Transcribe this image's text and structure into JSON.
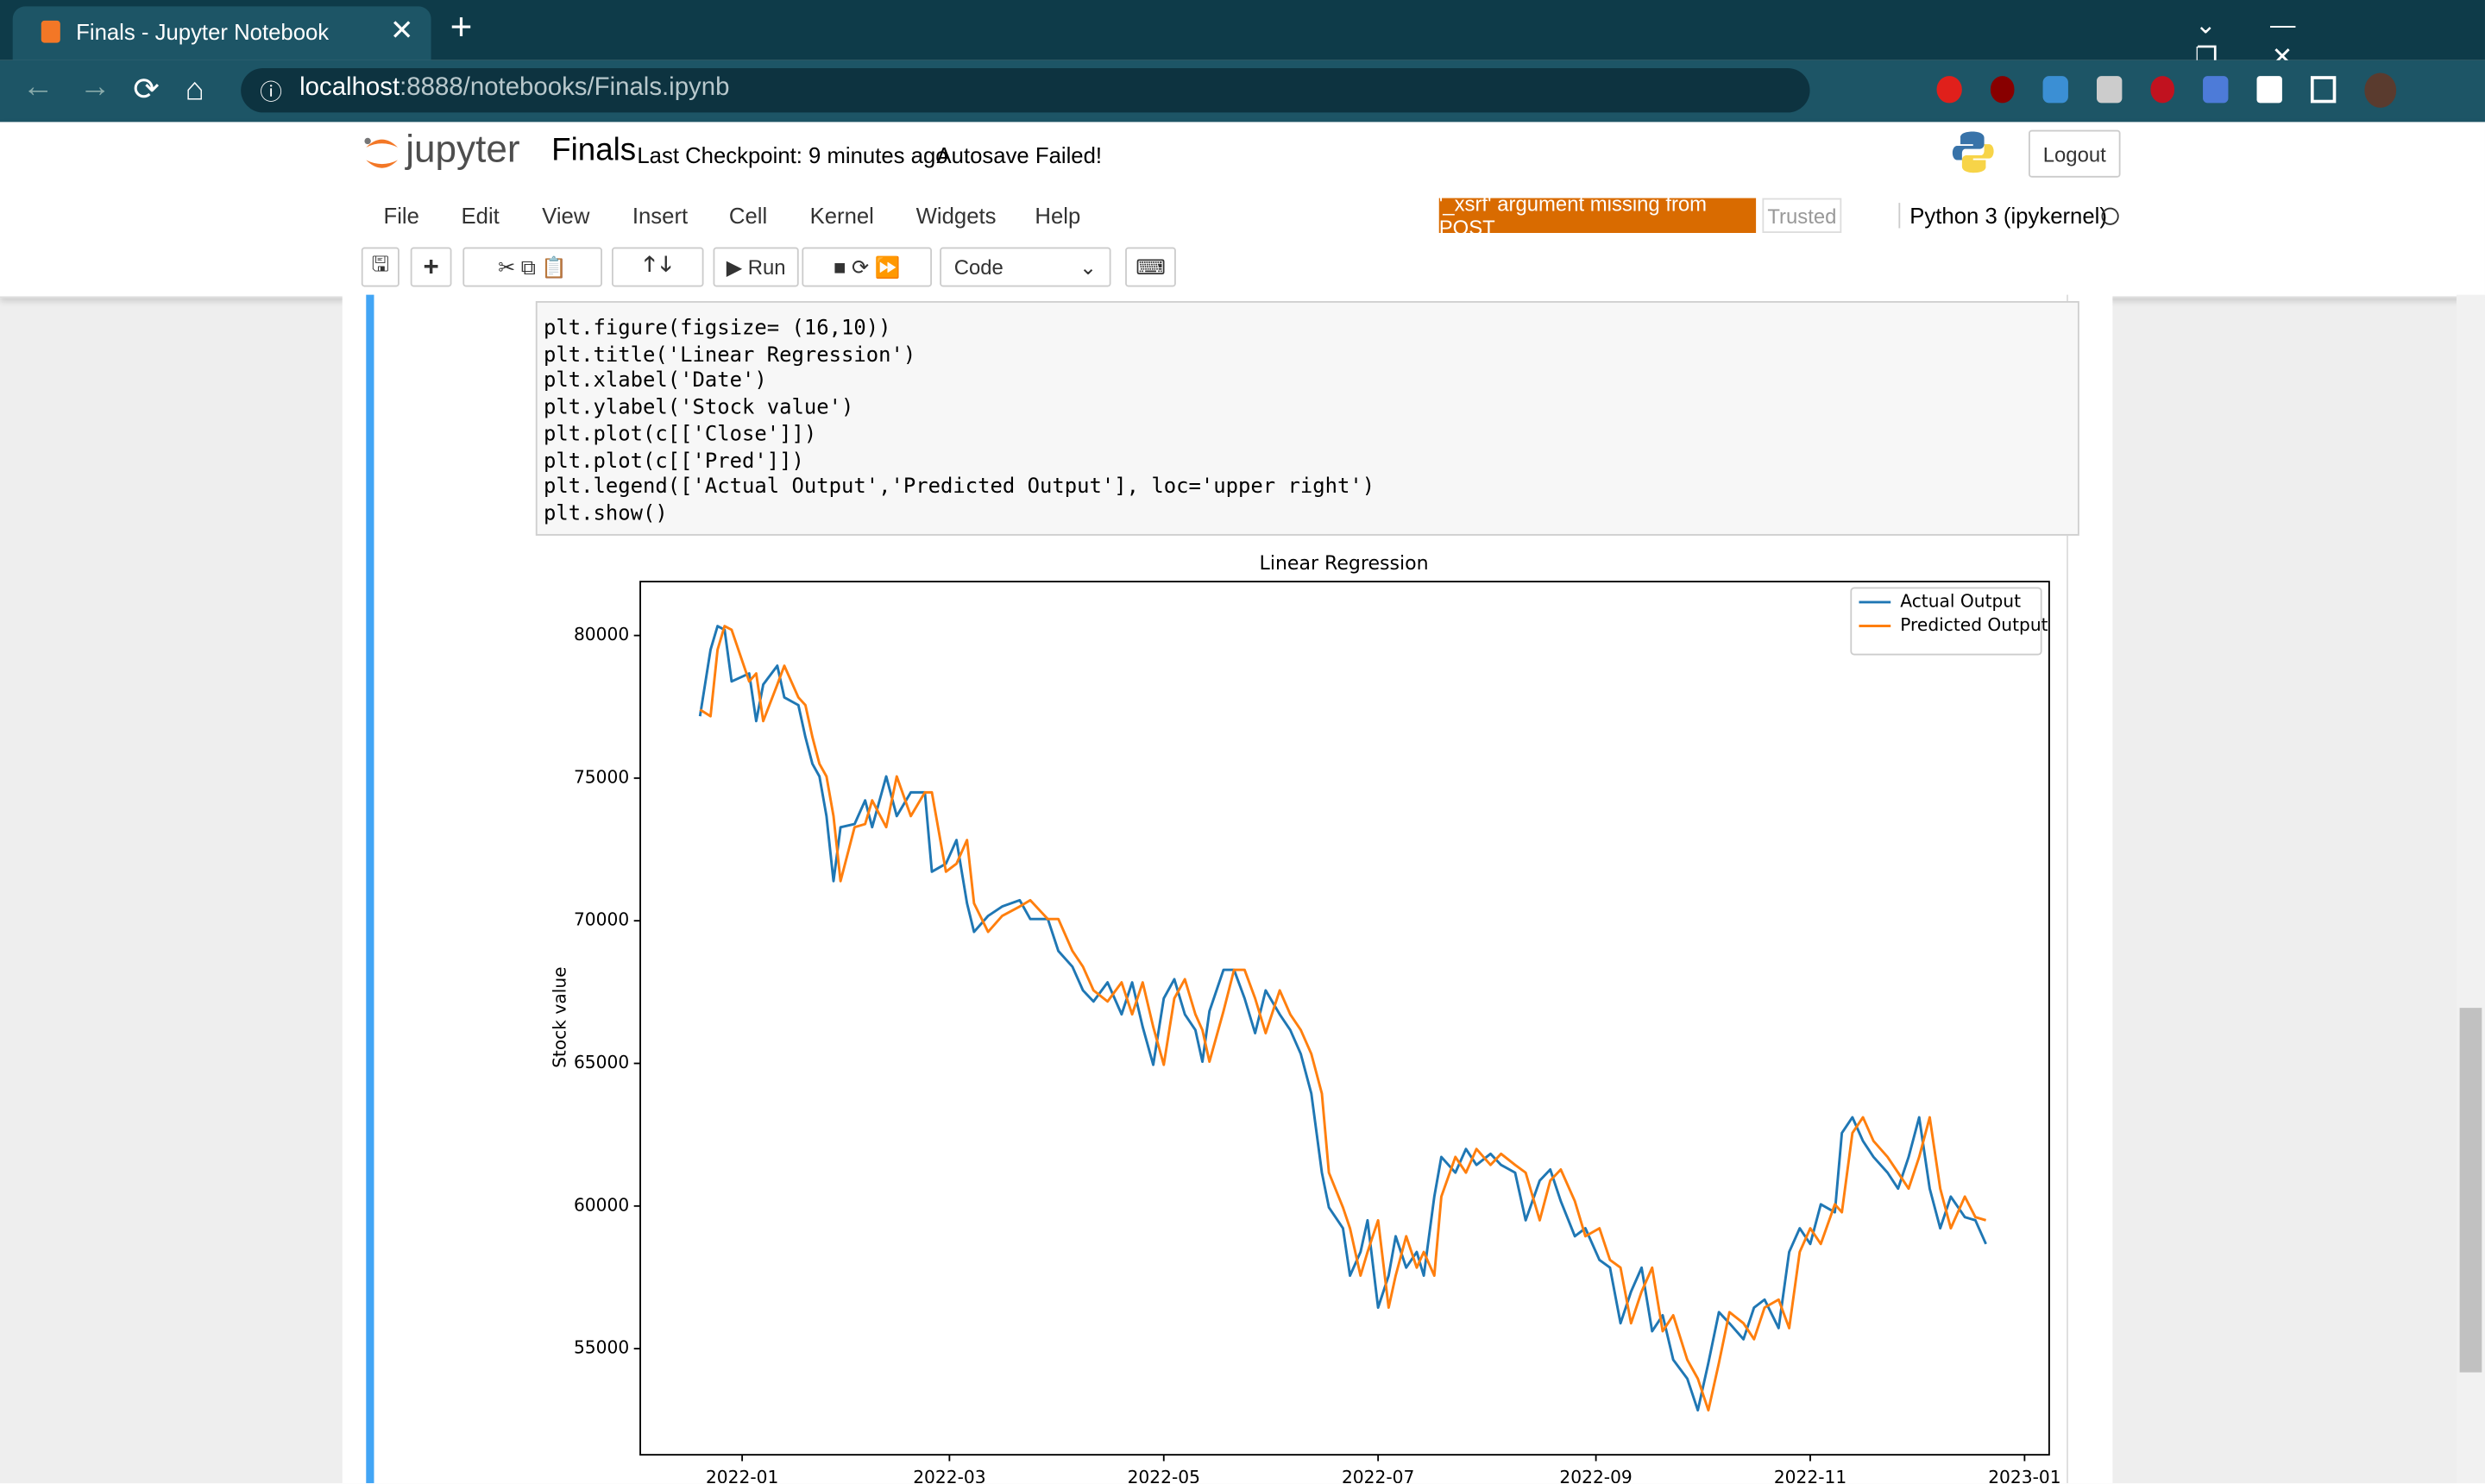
{
  "browser": {
    "tab_title": "Finals - Jupyter Notebook",
    "url_host": "localhost",
    "url_path": ":8888/notebooks/Finals.ipynb"
  },
  "jupyter": {
    "logo": "jupyter",
    "notebook_name": "Finals",
    "checkpoint": "Last Checkpoint: 9 minutes ago",
    "autosave": "Autosave Failed!",
    "logout": "Logout"
  },
  "menu": {
    "items": [
      "File",
      "Edit",
      "View",
      "Insert",
      "Cell",
      "Kernel",
      "Widgets",
      "Help"
    ],
    "warning": "'_xsrf' argument missing from POST",
    "trusted": "Trusted",
    "kernel": "Python 3 (ipykernel)"
  },
  "toolbar": {
    "run": "Run",
    "cell_type": "Code"
  },
  "code": {
    "lines": [
      "plt.figure(figsize= (16,10))",
      "plt.title('Linear Regression')",
      "plt.xlabel('Date')",
      "plt.ylabel('Stock value')",
      "plt.plot(c[['Close']])",
      "plt.plot(c[['Pred']])",
      "plt.legend(['Actual Output','Predicted Output'], loc='upper right')",
      "plt.show()"
    ]
  },
  "chart_data": {
    "type": "line",
    "title": "Linear Regression",
    "ylabel": "Stock value",
    "legend": "upper right",
    "x": [
      "2021-12-20",
      "2021-12-23",
      "2021-12-25",
      "2021-12-27",
      "2021-12-29",
      "2022-01-03",
      "2022-01-05",
      "2022-01-07",
      "2022-01-11",
      "2022-01-13",
      "2022-01-17",
      "2022-01-19",
      "2022-01-21",
      "2022-01-23",
      "2022-01-25",
      "2022-01-27",
      "2022-01-29",
      "2022-02-02",
      "2022-02-05",
      "2022-02-07",
      "2022-02-11",
      "2022-02-14",
      "2022-02-18",
      "2022-02-22",
      "2022-02-24",
      "2022-02-28",
      "2022-03-03",
      "2022-03-06",
      "2022-03-08",
      "2022-03-12",
      "2022-03-16",
      "2022-03-21",
      "2022-03-24",
      "2022-03-29",
      "2022-04-01",
      "2022-04-05",
      "2022-04-08",
      "2022-04-11",
      "2022-04-15",
      "2022-04-19",
      "2022-04-22",
      "2022-04-25",
      "2022-04-28",
      "2022-05-01",
      "2022-05-04",
      "2022-05-07",
      "2022-05-10",
      "2022-05-12",
      "2022-05-14",
      "2022-05-18",
      "2022-05-21",
      "2022-05-24",
      "2022-05-27",
      "2022-05-30",
      "2022-06-03",
      "2022-06-06",
      "2022-06-09",
      "2022-06-12",
      "2022-06-15",
      "2022-06-17",
      "2022-06-21",
      "2022-06-23",
      "2022-06-26",
      "2022-06-28",
      "2022-07-01",
      "2022-07-04",
      "2022-07-06",
      "2022-07-09",
      "2022-07-12",
      "2022-07-14",
      "2022-07-17",
      "2022-07-19",
      "2022-07-23",
      "2022-07-26",
      "2022-07-29",
      "2022-08-02",
      "2022-08-05",
      "2022-08-09",
      "2022-08-12",
      "2022-08-16",
      "2022-08-19",
      "2022-08-22",
      "2022-08-26",
      "2022-08-29",
      "2022-09-02",
      "2022-09-05",
      "2022-09-08",
      "2022-09-11",
      "2022-09-14",
      "2022-09-17",
      "2022-09-20",
      "2022-09-23",
      "2022-09-27",
      "2022-09-30",
      "2022-10-03",
      "2022-10-06",
      "2022-10-09",
      "2022-10-13",
      "2022-10-16",
      "2022-10-19",
      "2022-10-23",
      "2022-10-26",
      "2022-10-29",
      "2022-11-01",
      "2022-11-04",
      "2022-11-08",
      "2022-11-10",
      "2022-11-13",
      "2022-11-16",
      "2022-11-19",
      "2022-11-23",
      "2022-11-26",
      "2022-11-29",
      "2022-12-02",
      "2022-12-05",
      "2022-12-08",
      "2022-12-11",
      "2022-12-15",
      "2022-12-18",
      "2022-12-21"
    ],
    "series": [
      {
        "name": "Actual Output",
        "color": "#1f77b4",
        "values": [
          77170,
          79500,
          80330,
          80200,
          78390,
          78670,
          77000,
          78280,
          78940,
          77830,
          77560,
          76440,
          75500,
          75060,
          73670,
          71390,
          73280,
          73390,
          74220,
          73280,
          75060,
          73670,
          74500,
          74500,
          71720,
          72000,
          72830,
          70610,
          69610,
          70170,
          70500,
          70720,
          70060,
          70060,
          68940,
          68390,
          67560,
          67170,
          67840,
          66720,
          67840,
          66280,
          64950,
          67280,
          67950,
          66720,
          66170,
          65060,
          66830,
          68280,
          68280,
          67280,
          66060,
          67560,
          66720,
          66170,
          65330,
          63940,
          61170,
          59950,
          59220,
          57560,
          58390,
          59500,
          56440,
          57560,
          58940,
          57840,
          58390,
          57560,
          60330,
          61720,
          61170,
          62000,
          61440,
          61830,
          61440,
          61170,
          59500,
          60890,
          61280,
          60170,
          58940,
          59220,
          58110,
          57840,
          55890,
          57000,
          57840,
          55610,
          56170,
          54610,
          53950,
          52840,
          54500,
          56280,
          55890,
          55330,
          56440,
          56720,
          55720,
          58390,
          59220,
          58670,
          60060,
          59780,
          62560,
          63110,
          62280,
          61720,
          61170,
          60610,
          61720,
          63110,
          60610,
          59220,
          60330,
          59610,
          59500,
          58670
        ]
      },
      {
        "name": "Predicted Output",
        "color": "#ff7f0e",
        "values": [
          77400,
          77170,
          79500,
          80330,
          80200,
          78390,
          78670,
          77000,
          78280,
          78940,
          77830,
          77560,
          76440,
          75500,
          75060,
          73670,
          71390,
          73280,
          73390,
          74220,
          73280,
          75060,
          73670,
          74500,
          74500,
          71720,
          72000,
          72830,
          70610,
          69610,
          70170,
          70500,
          70720,
          70060,
          70060,
          68940,
          68390,
          67560,
          67170,
          67840,
          66720,
          67840,
          66280,
          64950,
          67280,
          67950,
          66720,
          66170,
          65060,
          66830,
          68280,
          68280,
          67280,
          66060,
          67560,
          66720,
          66170,
          65330,
          63940,
          61170,
          59950,
          59220,
          57560,
          58390,
          59500,
          56440,
          57560,
          58940,
          57840,
          58390,
          57560,
          60330,
          61720,
          61170,
          62000,
          61440,
          61830,
          61440,
          61170,
          59500,
          60890,
          61280,
          60170,
          58940,
          59220,
          58110,
          57840,
          55890,
          57000,
          57840,
          55610,
          56170,
          54610,
          53950,
          52840,
          54500,
          56280,
          55890,
          55330,
          56440,
          56720,
          55720,
          58390,
          59220,
          58670,
          60060,
          59780,
          62560,
          63110,
          62280,
          61720,
          61170,
          60610,
          61720,
          63110,
          60610,
          59220,
          60330,
          59610,
          59500
        ]
      }
    ],
    "xlim": [
      "2021-12-03",
      "2023-01-08"
    ],
    "xticks": [
      {
        "value": "2022-01-01",
        "label": "2022-01"
      },
      {
        "value": "2022-03-01",
        "label": "2022-03"
      },
      {
        "value": "2022-05-01",
        "label": "2022-05"
      },
      {
        "value": "2022-07-01",
        "label": "2022-07"
      },
      {
        "value": "2022-09-01",
        "label": "2022-09"
      },
      {
        "value": "2022-11-01",
        "label": "2022-11"
      },
      {
        "value": "2023-01-01",
        "label": "2023-01"
      }
    ],
    "ylim": [
      51280,
      81890
    ],
    "yticks": [
      55000,
      60000,
      65000,
      70000,
      75000,
      80000
    ]
  }
}
